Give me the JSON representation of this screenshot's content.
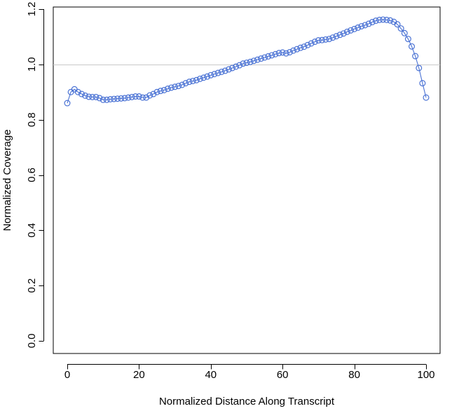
{
  "chart_data": {
    "type": "line",
    "title": "",
    "xlabel": "Normalized Distance Along Transcript",
    "ylabel": "Normalized Coverage",
    "xlim": [
      0,
      100
    ],
    "ylim": [
      0.0,
      1.2
    ],
    "xticks": [
      0,
      20,
      40,
      60,
      80,
      100
    ],
    "yticks": [
      0.0,
      0.2,
      0.4,
      0.6,
      0.8,
      1.0,
      1.2
    ],
    "xtick_labels": [
      "0",
      "20",
      "40",
      "60",
      "80",
      "100"
    ],
    "ytick_labels": [
      "0.0",
      "0.2",
      "0.4",
      "0.6",
      "0.8",
      "1.0",
      "1.2"
    ],
    "reference_line": {
      "y": 1.0,
      "color": "#c8c8c8"
    },
    "grid": false,
    "legend": "none",
    "series": [
      {
        "color": "#4a72d4",
        "marker": "open-circle",
        "x": [
          0,
          1,
          2,
          3,
          4,
          5,
          6,
          7,
          8,
          9,
          10,
          11,
          12,
          13,
          14,
          15,
          16,
          17,
          18,
          19,
          20,
          21,
          22,
          23,
          24,
          25,
          26,
          27,
          28,
          29,
          30,
          31,
          32,
          33,
          34,
          35,
          36,
          37,
          38,
          39,
          40,
          41,
          42,
          43,
          44,
          45,
          46,
          47,
          48,
          49,
          50,
          51,
          52,
          53,
          54,
          55,
          56,
          57,
          58,
          59,
          60,
          61,
          62,
          63,
          64,
          65,
          66,
          67,
          68,
          69,
          70,
          71,
          72,
          73,
          74,
          75,
          76,
          77,
          78,
          79,
          80,
          81,
          82,
          83,
          84,
          85,
          86,
          87,
          88,
          89,
          90,
          91,
          92,
          93,
          94,
          95,
          96,
          97,
          98,
          99,
          100
        ],
        "values": [
          0.86,
          0.9,
          0.91,
          0.9,
          0.893,
          0.887,
          0.883,
          0.882,
          0.882,
          0.878,
          0.872,
          0.872,
          0.874,
          0.875,
          0.876,
          0.877,
          0.878,
          0.88,
          0.882,
          0.884,
          0.884,
          0.88,
          0.88,
          0.888,
          0.893,
          0.9,
          0.904,
          0.907,
          0.912,
          0.916,
          0.919,
          0.922,
          0.926,
          0.932,
          0.937,
          0.94,
          0.943,
          0.948,
          0.952,
          0.956,
          0.961,
          0.965,
          0.969,
          0.973,
          0.977,
          0.982,
          0.987,
          0.992,
          0.997,
          1.003,
          1.006,
          1.009,
          1.013,
          1.017,
          1.021,
          1.025,
          1.029,
          1.033,
          1.037,
          1.041,
          1.043,
          1.04,
          1.044,
          1.05,
          1.055,
          1.06,
          1.064,
          1.07,
          1.076,
          1.082,
          1.087,
          1.088,
          1.09,
          1.092,
          1.097,
          1.102,
          1.107,
          1.112,
          1.118,
          1.123,
          1.128,
          1.133,
          1.138,
          1.142,
          1.147,
          1.153,
          1.158,
          1.161,
          1.162,
          1.161,
          1.159,
          1.154,
          1.145,
          1.13,
          1.113,
          1.092,
          1.065,
          1.03,
          0.987,
          0.932,
          0.88
        ]
      }
    ]
  }
}
